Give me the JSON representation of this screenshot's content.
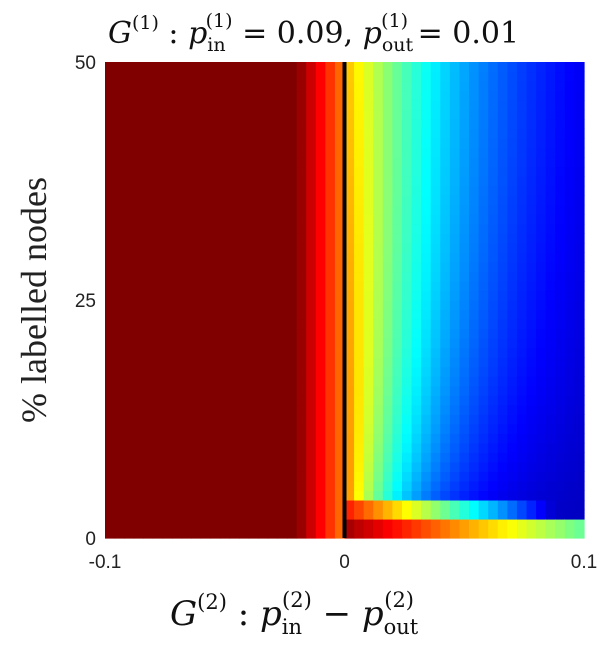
{
  "chart_data": {
    "type": "heatmap",
    "title": {
      "lead": "G",
      "lead_sup": "(1)",
      "colon": " : ",
      "p_in_base": "p",
      "p_in_sub": "in",
      "p_in_sup": "(1)",
      "p_in_value": " = 0.09, ",
      "p_out_base": "p",
      "p_out_sub": "out",
      "p_out_sup": "(1)",
      "p_out_value": " = 0.01"
    },
    "xlabel": {
      "lead": "G",
      "lead_sup": "(2)",
      "colon": " :  ",
      "p_in_base": "p",
      "p_in_sub": "in",
      "p_in_sup": "(2)",
      "minus": " − ",
      "p_out_base": "p",
      "p_out_sub": "out",
      "p_out_sup": "(2)"
    },
    "ylabel": "% labelled nodes",
    "x_ticks": [
      "-0.1",
      "0",
      "0.1"
    ],
    "y_ticks": [
      "0",
      "25",
      "50"
    ],
    "xlim": [
      -0.1,
      0.1
    ],
    "ylim": [
      0,
      50
    ],
    "n_cols": 50,
    "n_rows": 50,
    "reference_line_x": 0,
    "colormap": "jet",
    "colors": {
      "max": "#800000",
      "min": "#00008f",
      "reference_line": "#000000"
    }
  }
}
